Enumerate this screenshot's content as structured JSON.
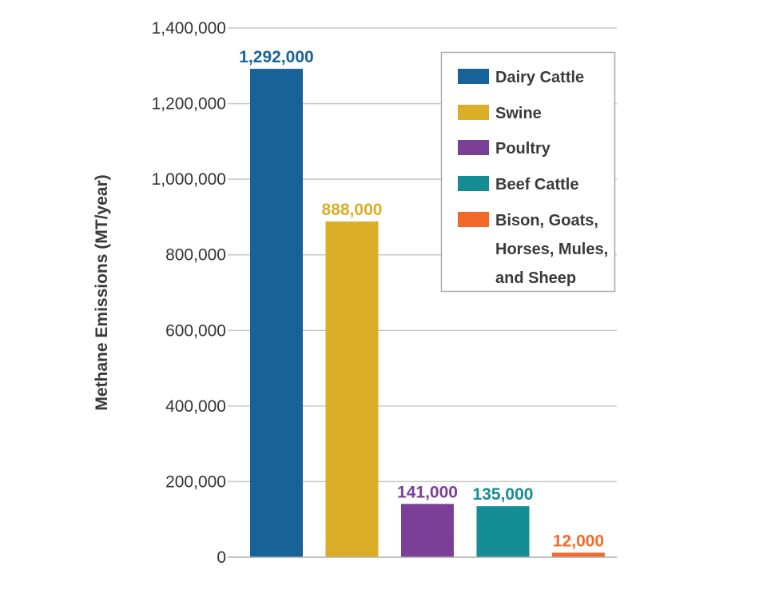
{
  "chart_data": {
    "type": "bar",
    "title": "",
    "xlabel": "",
    "ylabel": "Methane Emissions (MT/year)",
    "ylim": [
      0,
      1400000
    ],
    "yticks": [
      0,
      200000,
      400000,
      600000,
      800000,
      1000000,
      1200000,
      1400000
    ],
    "ytick_labels": [
      "0",
      "200,000",
      "400,000",
      "600,000",
      "800,000",
      "1,000,000",
      "1,200,000",
      "1,400,000"
    ],
    "grid": true,
    "legend_position": "top-right",
    "categories": [
      "Dairy Cattle",
      "Swine",
      "Poultry",
      "Beef Cattle",
      "Bison, Goats, Horses, Mules, and Sheep"
    ],
    "values": [
      1292000,
      888000,
      141000,
      135000,
      12000
    ],
    "data_labels": [
      "1,292,000",
      "888,000",
      "141,000",
      "135,000",
      "12,000"
    ],
    "colors": [
      "#176399",
      "#dbae27",
      "#7b3f97",
      "#158d95",
      "#f26a2a"
    ],
    "legend": [
      {
        "label_lines": [
          "Dairy Cattle"
        ],
        "color": "#176399"
      },
      {
        "label_lines": [
          "Swine"
        ],
        "color": "#dbae27"
      },
      {
        "label_lines": [
          "Poultry"
        ],
        "color": "#7b3f97"
      },
      {
        "label_lines": [
          "Beef Cattle"
        ],
        "color": "#158d95"
      },
      {
        "label_lines": [
          "Bison, Goats,",
          "Horses, Mules,",
          "and Sheep"
        ],
        "color": "#f26a2a"
      }
    ]
  }
}
